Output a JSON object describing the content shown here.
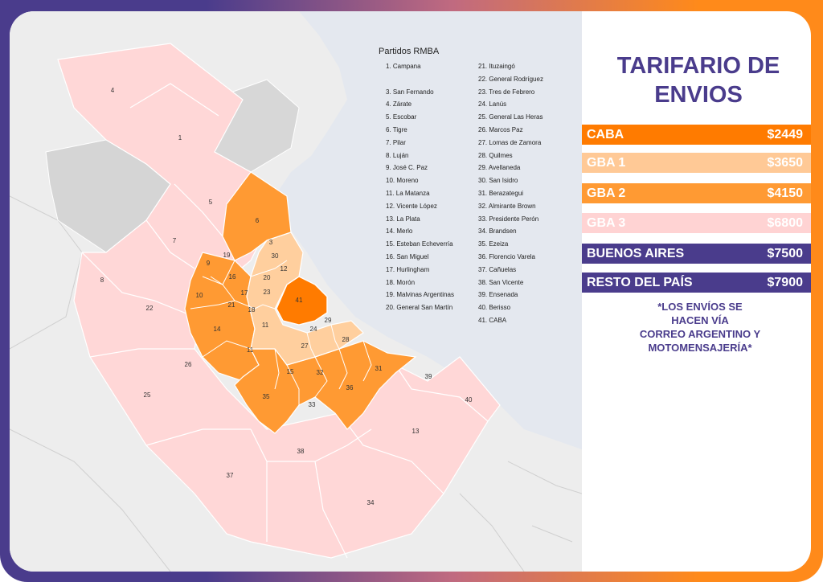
{
  "legend": {
    "title": "Partidos RMBA",
    "col1": [
      "1. Campana",
      "3. San Fernando",
      "4. Zárate",
      "5. Escobar",
      "6. Tigre",
      "7. Pilar",
      "8. Luján",
      "9. José C. Paz",
      "10. Moreno",
      "11. La Matanza",
      "12. Vicente López",
      "13. La Plata",
      "14. Merlo",
      "15. Esteban Echeverría",
      "16. San Miguel",
      "17. Hurlingham",
      "18. Morón",
      "19. Malvinas Argentinas",
      "20. General San Martín"
    ],
    "col2": [
      "21. Ituzaingó",
      "22. General Rodríguez",
      "23. Tres de Febrero",
      "24. Lanús",
      "25. General Las Heras",
      "26. Marcos Paz",
      "27. Lomas de Zamora",
      "28. Quilmes",
      "29. Avellaneda",
      "30. San Isidro",
      "31. Berazategui",
      "32. Almirante Brown",
      "33. Presidente Perón",
      "34. Brandsen",
      "35. Ezeiza",
      "36. Florencio Varela",
      "37. Cañuelas",
      "38. San Vicente",
      "39. Ensenada",
      "40. Berisso",
      "41. CABA"
    ]
  },
  "map_labels": [
    {
      "n": "4",
      "zone": "gba3"
    },
    {
      "n": "1",
      "zone": "gba3"
    },
    {
      "n": "5",
      "zone": "gba3"
    },
    {
      "n": "6",
      "zone": "gba2"
    },
    {
      "n": "7",
      "zone": "gba3"
    },
    {
      "n": "8",
      "zone": "gba3"
    },
    {
      "n": "3",
      "zone": "gba1"
    },
    {
      "n": "30",
      "zone": "gba1"
    },
    {
      "n": "19",
      "zone": "gba2"
    },
    {
      "n": "9",
      "zone": "gba2"
    },
    {
      "n": "16",
      "zone": "gba2"
    },
    {
      "n": "12",
      "zone": "gba1"
    },
    {
      "n": "20",
      "zone": "gba1"
    },
    {
      "n": "22",
      "zone": "gba3"
    },
    {
      "n": "10",
      "zone": "gba2"
    },
    {
      "n": "17",
      "zone": "gba2"
    },
    {
      "n": "23",
      "zone": "gba1"
    },
    {
      "n": "41",
      "zone": "caba"
    },
    {
      "n": "21",
      "zone": "gba2"
    },
    {
      "n": "18",
      "zone": "gba1"
    },
    {
      "n": "11",
      "zone": "gba1"
    },
    {
      "n": "29",
      "zone": "gba1"
    },
    {
      "n": "14",
      "zone": "gba2"
    },
    {
      "n": "24",
      "zone": "gba1"
    },
    {
      "n": "28",
      "zone": "gba2"
    },
    {
      "n": "11",
      "zone": "gba2"
    },
    {
      "n": "27",
      "zone": "gba1"
    },
    {
      "n": "26",
      "zone": "gba3"
    },
    {
      "n": "15",
      "zone": "gba2"
    },
    {
      "n": "32",
      "zone": "gba2"
    },
    {
      "n": "31",
      "zone": "gba2"
    },
    {
      "n": "39",
      "zone": "gba3"
    },
    {
      "n": "35",
      "zone": "gba2"
    },
    {
      "n": "36",
      "zone": "gba2"
    },
    {
      "n": "40",
      "zone": "gba3"
    },
    {
      "n": "25",
      "zone": "gba3"
    },
    {
      "n": "33",
      "zone": "gba3"
    },
    {
      "n": "13",
      "zone": "gba3"
    },
    {
      "n": "38",
      "zone": "gba3"
    },
    {
      "n": "37",
      "zone": "gba3"
    },
    {
      "n": "34",
      "zone": "gba3"
    }
  ],
  "colors": {
    "caba": "#ff7b00",
    "gba1": "#ffcf9e",
    "gba2": "#ff9a33",
    "gba3": "#ffd7d7",
    "rest": "#4a3c8c",
    "water": "#e3e7ef",
    "land": "#ececec",
    "outside": "#d6d6d6"
  },
  "tarifario": {
    "title_line1": "TARIFARIO DE",
    "title_line2": "ENVIOS",
    "rates": [
      {
        "label": "CABA",
        "price": "$2449",
        "color": "#ff7b00"
      },
      {
        "label": "GBA 1",
        "price": "$3650",
        "color": "#ffc996"
      },
      {
        "label": "GBA 2",
        "price": "$4150",
        "color": "#ff9a33"
      },
      {
        "label": "GBA 3",
        "price": "$6800",
        "color": "#ffd3d3"
      },
      {
        "label": "BUENOS AIRES",
        "price": "$7500",
        "color": "#4a3c8c"
      },
      {
        "label": "RESTO DEL PAÍS",
        "price": "$7900",
        "color": "#4a3c8c"
      }
    ],
    "note": [
      "*LOS ENVÍOS SE",
      "HACEN VÍA",
      "CORREO ARGENTINO Y",
      "MOTOMENSAJERÍA*"
    ]
  }
}
